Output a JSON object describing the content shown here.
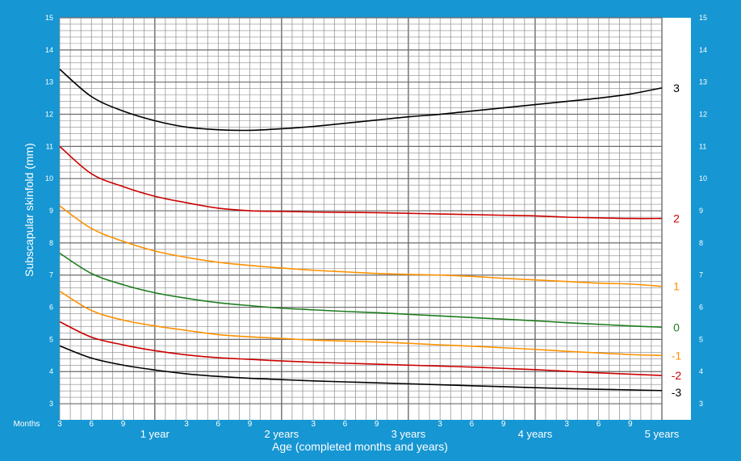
{
  "chart_data": {
    "type": "line",
    "ylabel": "Subscapular skinfold (mm)",
    "xlabel": "Age (completed months and years)",
    "x_prefix_label": "Months",
    "xlim": [
      3,
      60
    ],
    "ylim": [
      2.5,
      15
    ],
    "y_ticks": [
      3,
      4,
      5,
      6,
      7,
      8,
      9,
      10,
      11,
      12,
      13,
      14,
      15
    ],
    "month_tick_labels": [
      {
        "x": 3,
        "label": "3"
      },
      {
        "x": 6,
        "label": "6"
      },
      {
        "x": 9,
        "label": "9"
      },
      {
        "x": 15,
        "label": "3"
      },
      {
        "x": 18,
        "label": "6"
      },
      {
        "x": 21,
        "label": "9"
      },
      {
        "x": 27,
        "label": "3"
      },
      {
        "x": 30,
        "label": "6"
      },
      {
        "x": 33,
        "label": "9"
      },
      {
        "x": 39,
        "label": "3"
      },
      {
        "x": 42,
        "label": "6"
      },
      {
        "x": 45,
        "label": "9"
      },
      {
        "x": 51,
        "label": "3"
      },
      {
        "x": 54,
        "label": "6"
      },
      {
        "x": 57,
        "label": "9"
      }
    ],
    "year_tick_labels": [
      {
        "x": 12,
        "label": "1 year"
      },
      {
        "x": 24,
        "label": "2 years"
      },
      {
        "x": 36,
        "label": "3 years"
      },
      {
        "x": 48,
        "label": "4 years"
      },
      {
        "x": 60,
        "label": "5 years"
      }
    ],
    "grid": true,
    "x": [
      3,
      6,
      9,
      12,
      15,
      18,
      21,
      24,
      27,
      30,
      33,
      36,
      39,
      42,
      45,
      48,
      51,
      54,
      57,
      60
    ],
    "series": [
      {
        "name": "3",
        "color": "#000000",
        "values": [
          13.4,
          12.55,
          12.1,
          11.8,
          11.6,
          11.52,
          11.5,
          11.55,
          11.62,
          11.72,
          11.82,
          11.92,
          12.0,
          12.1,
          12.2,
          12.3,
          12.4,
          12.5,
          12.63,
          12.82
        ]
      },
      {
        "name": "2",
        "color": "#cc0000",
        "values": [
          11.0,
          10.15,
          9.75,
          9.45,
          9.25,
          9.08,
          9.0,
          8.98,
          8.96,
          8.95,
          8.94,
          8.92,
          8.9,
          8.88,
          8.86,
          8.84,
          8.8,
          8.78,
          8.76,
          8.76
        ]
      },
      {
        "name": "1",
        "color": "#ff9100",
        "values": [
          9.15,
          8.45,
          8.05,
          7.75,
          7.55,
          7.4,
          7.3,
          7.22,
          7.15,
          7.1,
          7.05,
          7.02,
          7.0,
          6.96,
          6.9,
          6.85,
          6.8,
          6.75,
          6.72,
          6.65
        ]
      },
      {
        "name": "0",
        "color": "#1e7d1e",
        "values": [
          7.68,
          7.05,
          6.7,
          6.45,
          6.28,
          6.14,
          6.05,
          5.97,
          5.92,
          5.87,
          5.83,
          5.78,
          5.73,
          5.68,
          5.63,
          5.58,
          5.52,
          5.47,
          5.42,
          5.38
        ]
      },
      {
        "name": "-1",
        "color": "#ff9100",
        "values": [
          6.5,
          5.9,
          5.6,
          5.42,
          5.28,
          5.15,
          5.08,
          5.03,
          4.98,
          4.95,
          4.92,
          4.88,
          4.83,
          4.79,
          4.74,
          4.69,
          4.63,
          4.58,
          4.53,
          4.5
        ]
      },
      {
        "name": "-2",
        "color": "#cc0000",
        "values": [
          5.55,
          5.07,
          4.83,
          4.65,
          4.52,
          4.43,
          4.38,
          4.33,
          4.29,
          4.26,
          4.23,
          4.2,
          4.17,
          4.14,
          4.1,
          4.06,
          4.01,
          3.96,
          3.92,
          3.88
        ]
      },
      {
        "name": "-3",
        "color": "#000000",
        "values": [
          4.8,
          4.42,
          4.2,
          4.05,
          3.93,
          3.85,
          3.79,
          3.75,
          3.71,
          3.68,
          3.65,
          3.62,
          3.59,
          3.56,
          3.53,
          3.5,
          3.47,
          3.45,
          3.43,
          3.41
        ]
      }
    ]
  }
}
